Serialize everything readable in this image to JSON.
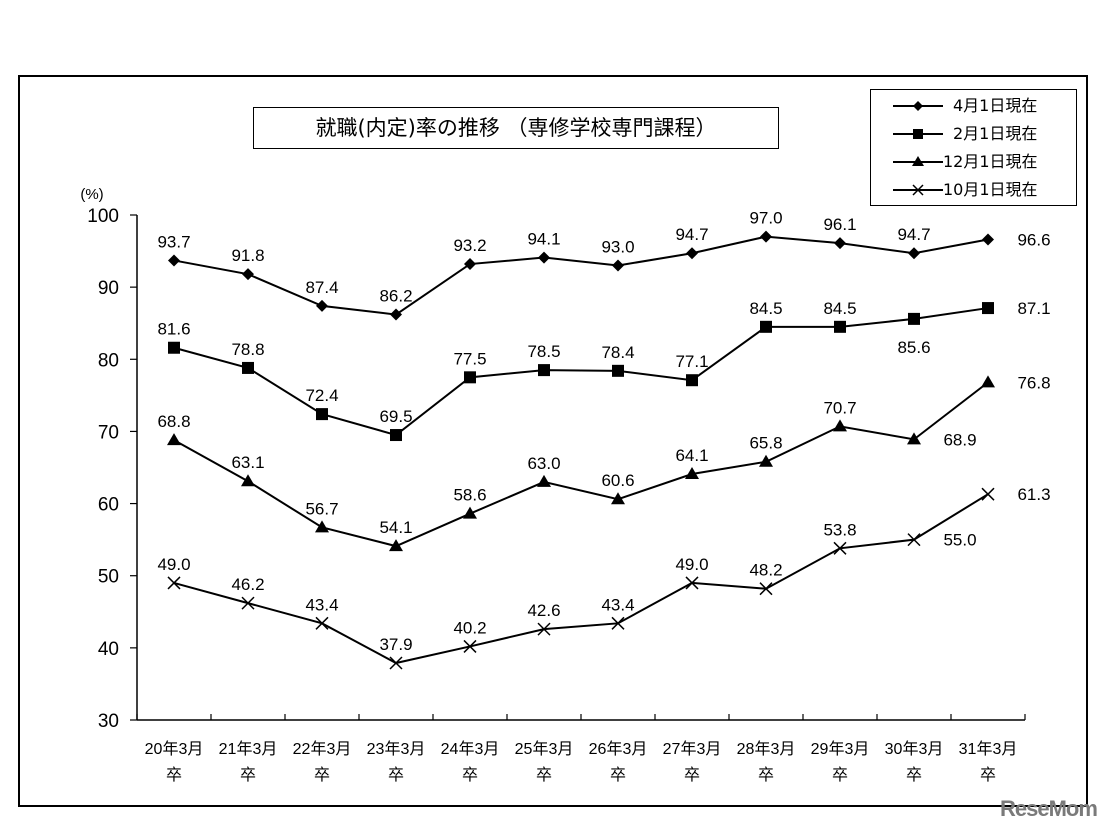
{
  "chart_data": {
    "type": "line",
    "title": "就職(内定)率の推移 （専修学校専門課程）",
    "ylabel": "(%)",
    "xlabel": "",
    "ylim": [
      30,
      100
    ],
    "yticks": [
      100,
      90,
      80,
      70,
      60,
      50,
      40,
      30
    ],
    "grid": false,
    "legend_position": "top-right",
    "categories": [
      "20年3月卒",
      "21年3月卒",
      "22年3月卒",
      "23年3月卒",
      "24年3月卒",
      "25年3月卒",
      "26年3月卒",
      "27年3月卒",
      "28年3月卒",
      "29年3月卒",
      "30年3月卒",
      "31年3月卒"
    ],
    "category_lines": [
      [
        "20年3月",
        "卒"
      ],
      [
        "21年3月",
        "卒"
      ],
      [
        "22年3月",
        "卒"
      ],
      [
        "23年3月",
        "卒"
      ],
      [
        "24年3月",
        "卒"
      ],
      [
        "25年3月",
        "卒"
      ],
      [
        "26年3月",
        "卒"
      ],
      [
        "27年3月",
        "卒"
      ],
      [
        "28年3月",
        "卒"
      ],
      [
        "29年3月",
        "卒"
      ],
      [
        "30年3月",
        "卒"
      ],
      [
        "31年3月",
        "卒"
      ]
    ],
    "series": [
      {
        "name": "4月1日現在",
        "marker": "diamond",
        "values": [
          93.7,
          91.8,
          87.4,
          86.2,
          93.2,
          94.1,
          93.0,
          94.7,
          97.0,
          96.1,
          94.7,
          96.6
        ]
      },
      {
        "name": "2月1日現在",
        "marker": "square",
        "values": [
          81.6,
          78.8,
          72.4,
          69.5,
          77.5,
          78.5,
          78.4,
          77.1,
          84.5,
          84.5,
          85.6,
          87.1
        ]
      },
      {
        "name": "12月1日現在",
        "marker": "triangle",
        "values": [
          68.8,
          63.1,
          56.7,
          54.1,
          58.6,
          63.0,
          60.6,
          64.1,
          65.8,
          70.7,
          68.9,
          76.8
        ]
      },
      {
        "name": "10月1日現在",
        "marker": "x",
        "values": [
          49.0,
          46.2,
          43.4,
          37.9,
          40.2,
          42.6,
          43.4,
          49.0,
          48.2,
          53.8,
          55.0,
          61.3
        ]
      }
    ]
  },
  "labels": {
    "title": "就職(内定)率の推移 （専修学校専門課程）",
    "y_unit": "(%)",
    "watermark": "ReseMom"
  },
  "colors": {
    "line": "#000000",
    "background": "#ffffff",
    "watermark": "#7a7a7a"
  }
}
